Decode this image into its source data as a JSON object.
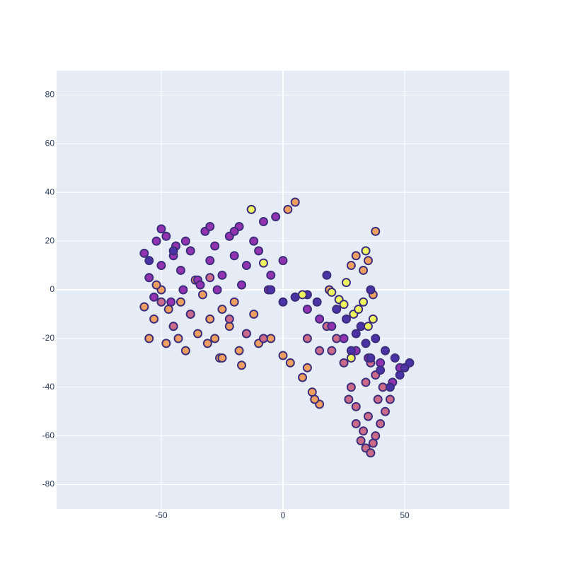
{
  "chart_data": {
    "type": "scatter",
    "xlim": [
      -93,
      93
    ],
    "ylim": [
      -90,
      90
    ],
    "xticks": [
      -50,
      0,
      50
    ],
    "yticks": [
      -80,
      -60,
      -40,
      -20,
      0,
      20,
      40,
      60,
      80
    ],
    "grid": true,
    "series": [
      {
        "color": "#ef9f5f",
        "x": [
          -57,
          -55,
          -53,
          -50,
          -48,
          -45,
          -42,
          -40,
          -38,
          -35,
          -33,
          -30,
          -28,
          -25,
          -22,
          -20,
          -18,
          -15,
          -12,
          -10,
          -52,
          -47,
          -43,
          -36,
          -31,
          -26,
          -5,
          0,
          3,
          10,
          12,
          15,
          19,
          -13,
          2,
          5,
          30,
          33,
          35,
          38,
          28,
          37,
          -25,
          -17,
          8,
          13
        ],
        "values": [
          -7,
          -20,
          -12,
          0,
          -22,
          -15,
          -5,
          -25,
          -10,
          -18,
          -2,
          -12,
          -20,
          -8,
          -15,
          -5,
          -25,
          -18,
          -10,
          -22,
          2,
          -8,
          -20,
          4,
          -22,
          -28,
          -20,
          -27,
          -30,
          -32,
          -42,
          -47,
          0,
          33,
          33,
          36,
          14,
          8,
          12,
          24,
          10,
          -2,
          -28,
          -31,
          -36,
          -45
        ]
      },
      {
        "color": "#cc6a8a",
        "x": [
          28,
          30,
          32,
          34,
          36,
          38,
          40,
          42,
          44,
          30,
          33,
          35,
          37,
          39,
          41,
          34,
          36,
          38,
          25,
          27,
          22,
          20,
          18,
          -45,
          -38,
          -30,
          -22,
          -15,
          -8,
          -50,
          10,
          15
        ],
        "values": [
          -40,
          -55,
          -62,
          -65,
          -67,
          -60,
          -55,
          -50,
          -45,
          -48,
          -58,
          -52,
          -63,
          -45,
          -40,
          -38,
          -30,
          -35,
          -30,
          -45,
          -20,
          -25,
          -15,
          -15,
          -10,
          5,
          -12,
          -18,
          -20,
          -5,
          -20,
          -25
        ]
      },
      {
        "color": "#9432b0",
        "x": [
          -57,
          -55,
          -52,
          -50,
          -48,
          -45,
          -42,
          -40,
          -38,
          -35,
          -32,
          -30,
          -28,
          -25,
          -22,
          -20,
          -18,
          -15,
          -12,
          -10,
          -8,
          -5,
          -3,
          0,
          -53,
          -46,
          -41,
          -34,
          -27,
          -17,
          -6,
          5,
          10,
          15,
          20,
          25,
          30,
          35,
          40,
          45,
          48,
          -50,
          -44,
          -30,
          -20
        ],
        "values": [
          15,
          5,
          20,
          10,
          22,
          14,
          8,
          20,
          16,
          4,
          24,
          12,
          18,
          6,
          22,
          14,
          26,
          10,
          20,
          16,
          28,
          6,
          30,
          12,
          -3,
          -5,
          0,
          2,
          0,
          2,
          0,
          -3,
          -8,
          -12,
          -15,
          -20,
          -25,
          -28,
          -30,
          -38,
          -32,
          25,
          18,
          26,
          24
        ]
      },
      {
        "color": "#4a33a6",
        "x": [
          18,
          22,
          26,
          30,
          34,
          38,
          42,
          46,
          50,
          52,
          48,
          44,
          40,
          36,
          32,
          10,
          14,
          -5,
          0,
          5,
          -55,
          -45,
          28,
          36
        ],
        "values": [
          6,
          -8,
          -12,
          -18,
          -22,
          -20,
          -25,
          -28,
          -32,
          -30,
          -35,
          -40,
          -33,
          -28,
          -15,
          -2,
          -5,
          0,
          -5,
          -3,
          12,
          16,
          -25,
          0
        ]
      },
      {
        "color": "#eef55e",
        "x": [
          -13,
          8,
          20,
          23,
          26,
          29,
          31,
          33,
          35,
          37,
          34,
          28,
          25,
          -8
        ],
        "values": [
          33,
          -2,
          -1,
          -4,
          3,
          -10,
          -8,
          -5,
          -15,
          -12,
          16,
          -28,
          -6,
          11
        ]
      }
    ]
  }
}
